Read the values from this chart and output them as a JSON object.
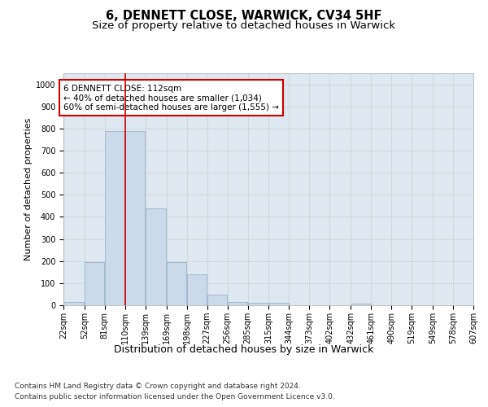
{
  "title": "6, DENNETT CLOSE, WARWICK, CV34 5HF",
  "subtitle": "Size of property relative to detached houses in Warwick",
  "xlabel": "Distribution of detached houses by size in Warwick",
  "ylabel": "Number of detached properties",
  "bar_edges": [
    22,
    52,
    81,
    110,
    139,
    169,
    198,
    227,
    256,
    285,
    315,
    344,
    373,
    402,
    432,
    461,
    490,
    519,
    549,
    578,
    607
  ],
  "bar_heights": [
    15,
    195,
    790,
    790,
    440,
    195,
    140,
    48,
    15,
    12,
    10,
    0,
    0,
    0,
    8,
    0,
    0,
    0,
    0,
    0
  ],
  "bar_color": "#ccd9e8",
  "bar_edgecolor": "#9ab4cb",
  "red_line_x": 110,
  "annotation_text": "6 DENNETT CLOSE: 112sqm\n← 40% of detached houses are smaller (1,034)\n60% of semi-detached houses are larger (1,555) →",
  "annotation_box_color": "#ffffff",
  "annotation_box_edgecolor": "#cc0000",
  "ylim": [
    0,
    1050
  ],
  "yticks": [
    0,
    100,
    200,
    300,
    400,
    500,
    600,
    700,
    800,
    900,
    1000
  ],
  "grid_color": "#d0d0d0",
  "background_color": "#dde8f0",
  "footer_line1": "Contains HM Land Registry data © Crown copyright and database right 2024.",
  "footer_line2": "Contains public sector information licensed under the Open Government Licence v3.0.",
  "title_fontsize": 10.5,
  "subtitle_fontsize": 9.5,
  "xlabel_fontsize": 9,
  "ylabel_fontsize": 8,
  "tick_fontsize": 7,
  "annotation_fontsize": 7.5,
  "footer_fontsize": 6.5
}
